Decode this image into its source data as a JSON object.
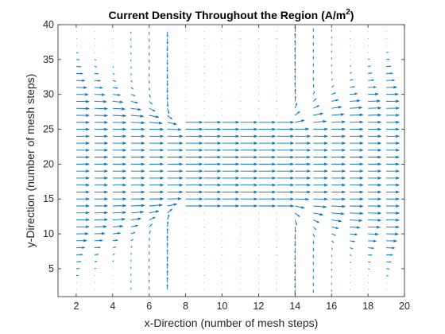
{
  "chart_data": {
    "type": "quiver",
    "title": "Current Density Throughout the Region (A/m",
    "title_superscript": "2",
    "title_suffix": ")",
    "xlabel": "x-Direction (number of mesh steps)",
    "ylabel": "y-Direction (number of mesh steps)",
    "xlim": [
      1,
      20
    ],
    "ylim": [
      1,
      40
    ],
    "xticks": [
      2,
      4,
      6,
      8,
      10,
      12,
      14,
      16,
      18,
      20
    ],
    "yticks": [
      5,
      10,
      15,
      20,
      25,
      30,
      35,
      40
    ],
    "grid": false,
    "arrow_color": "#0072BD",
    "grid_x": [
      2,
      3,
      4,
      5,
      6,
      7,
      8,
      9,
      10,
      11,
      12,
      13,
      14,
      15,
      16,
      17,
      18,
      19
    ],
    "grid_y": [
      2,
      3,
      4,
      5,
      6,
      7,
      8,
      9,
      10,
      11,
      12,
      13,
      14,
      15,
      16,
      17,
      18,
      19,
      20,
      21,
      22,
      23,
      24,
      25,
      26,
      27,
      28,
      29,
      30,
      31,
      32,
      33,
      34,
      35,
      36,
      37,
      38,
      39
    ],
    "channel": {
      "x_range": [
        8,
        13
      ],
      "y_range": [
        14,
        26
      ]
    },
    "max_vector_length_x": 0.95
  }
}
